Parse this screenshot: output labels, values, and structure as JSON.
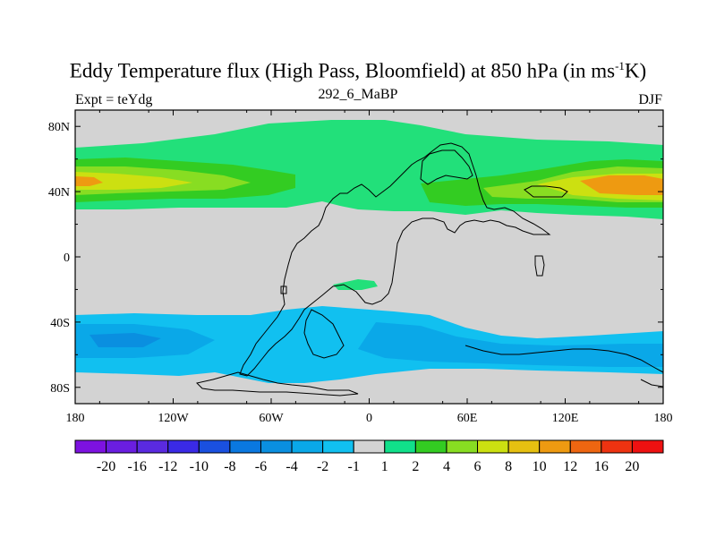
{
  "title": {
    "main": "Eddy Temperature flux (High Pass, Bloomfield) at 850 hPa (in ms",
    "superscript": "-1",
    "tail": "K)"
  },
  "subtitle": "292_6_MaBP",
  "expt_label": "Expt = teYdg",
  "season_label": "DJF",
  "colors": {
    "background": "#d3d3d3",
    "coast": "#000000",
    "mid_green": "#22e07a",
    "green": "#33cc22",
    "light_green": "#88dd22",
    "yellow": "#cce011",
    "orange": "#ee9a11",
    "light_blue": "#11c0f0",
    "mid_blue": "#0aa8e8",
    "blue": "#0a8fe0"
  },
  "chart_data": {
    "type": "heatmap",
    "projection": "cylindrical-equidistant",
    "x_range": [
      -180,
      180
    ],
    "y_range": [
      -90,
      90
    ],
    "x_ticks": [
      "180",
      "120W",
      "60W",
      "0",
      "60E",
      "120E",
      "180"
    ],
    "y_ticks": [
      "80N",
      "40N",
      "0",
      "40S",
      "80S"
    ],
    "colorbar": {
      "levels": [
        "-20",
        "-16",
        "-12",
        "-10",
        "-8",
        "-6",
        "-4",
        "-2",
        "-1",
        "1",
        "2",
        "4",
        "6",
        "8",
        "10",
        "12",
        "16",
        "20"
      ],
      "colors": [
        "#7d12e0",
        "#6a1ee0",
        "#5a2ae0",
        "#3a2ae6",
        "#1a50e0",
        "#0a78e0",
        "#0a8fe0",
        "#0aa8e8",
        "#11c0f0",
        "#d3d3d3",
        "#11e08a",
        "#33cc22",
        "#88dd22",
        "#cce011",
        "#e6c011",
        "#ee9a11",
        "#ee6611",
        "#ee3311",
        "#ee1111"
      ]
    }
  }
}
